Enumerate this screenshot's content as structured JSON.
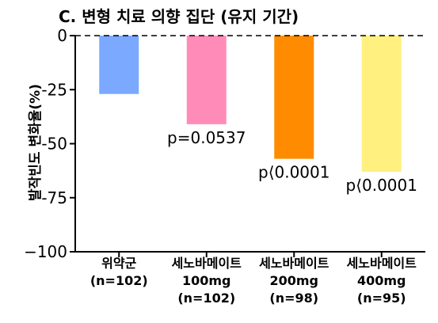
{
  "chart_data": {
    "type": "bar",
    "title": "C. 변형 치료 의향 집단 (유지 기간)",
    "ylabel": "발작빈도 변화율(%)",
    "ylim": [
      -100,
      0
    ],
    "yticks": [
      0,
      -25,
      -50,
      -75,
      -100
    ],
    "ytick_labels": [
      "0",
      "-25",
      "-50",
      "-75",
      "−100"
    ],
    "categories": [
      [
        "위약군",
        "(n=102)"
      ],
      [
        "세노바메이트",
        "100mg",
        "(n=102)"
      ],
      [
        "세노바메이트",
        "200mg",
        "(n=98)"
      ],
      [
        "세노바메이트",
        "400mg",
        "(n=95)"
      ]
    ],
    "values": [
      -27,
      -41,
      -57,
      -63
    ],
    "colors": [
      "#7aa9ff",
      "#ff8cb8",
      "#ff8c00",
      "#fff080"
    ],
    "annotations": [
      "",
      "p=0.0537",
      "p⟨0.0001",
      "p⟨0.0001"
    ],
    "zero_line": "dashed"
  }
}
